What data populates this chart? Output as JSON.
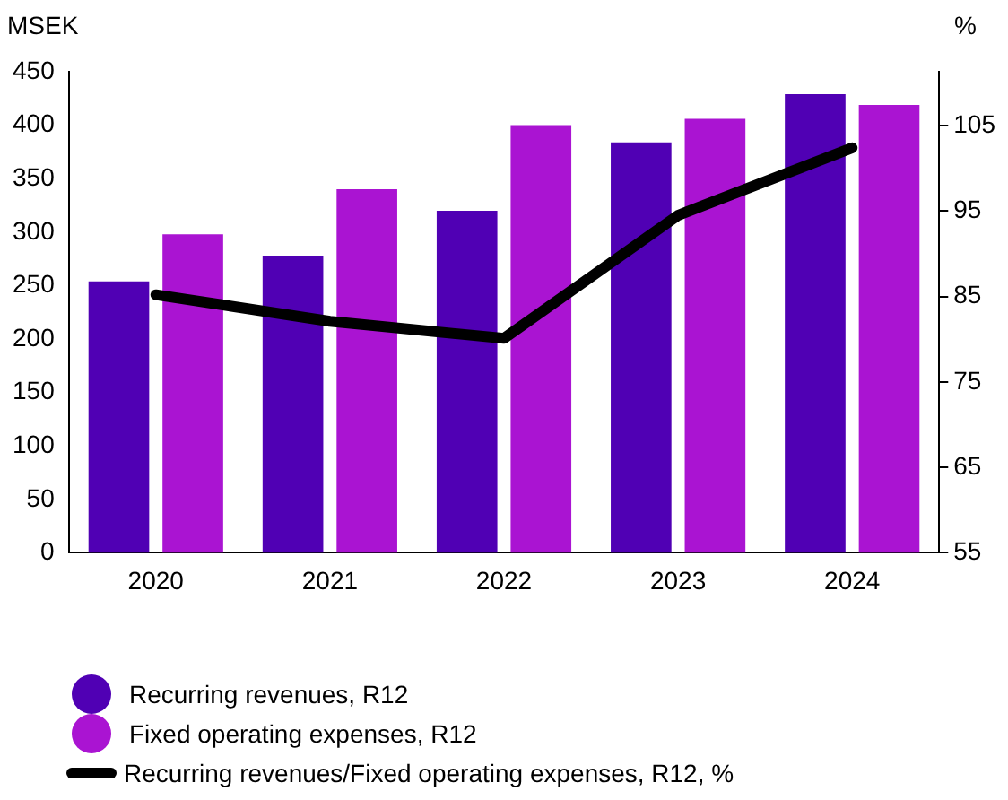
{
  "chart_data": {
    "type": "bar",
    "ylabel": "MSEK",
    "y2label": "%",
    "categories": [
      "2020",
      "2021",
      "2022",
      "2023",
      "2024"
    ],
    "series": [
      {
        "name": "Recurring revenues, R12",
        "color": "#5000b4",
        "values": [
          254,
          278,
          320,
          384,
          429
        ]
      },
      {
        "name": "Fixed operating expenses, R12",
        "color": "#aa14d2",
        "values": [
          298,
          340,
          400,
          406,
          419
        ]
      },
      {
        "name": "Recurring revenues/Fixed operating expenses, R12, %",
        "type": "line",
        "axis": "y2",
        "color": "#000000",
        "values": [
          85.2,
          82.1,
          80.1,
          94.5,
          102.4
        ]
      }
    ],
    "ylim": [
      0,
      450
    ],
    "yticks": [
      0,
      50,
      100,
      150,
      200,
      250,
      300,
      350,
      400,
      450
    ],
    "y2lim": [
      55,
      111.3
    ],
    "y2ticks": [
      55,
      65,
      75,
      85,
      95,
      105
    ],
    "grid": false,
    "legend": "bottom",
    "marker": "none"
  }
}
